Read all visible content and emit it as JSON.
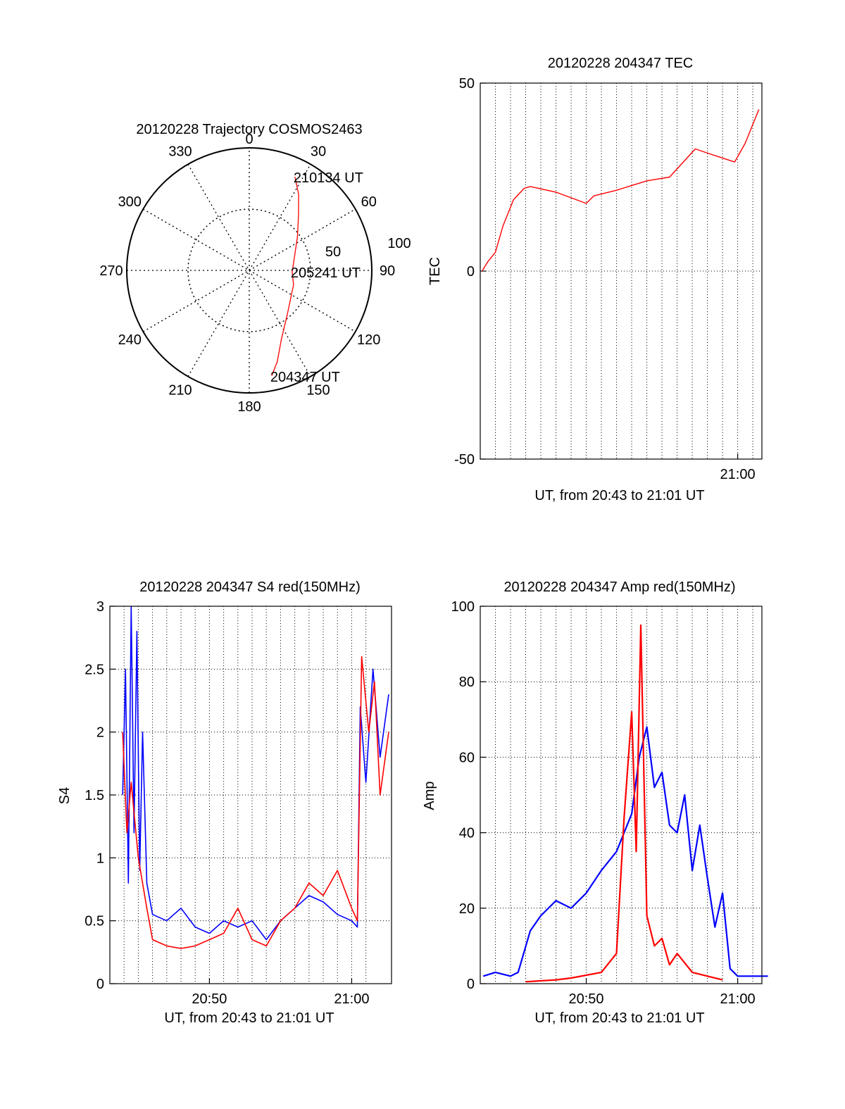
{
  "chart_data": [
    {
      "type": "polar",
      "title": "20120228 Trajectory COSMOS2463",
      "angle_labels": [
        "0",
        "30",
        "60",
        "90",
        "120",
        "150",
        "180",
        "210",
        "240",
        "270",
        "300",
        "330"
      ],
      "radius_labels": [
        "50",
        "100"
      ],
      "rlim": [
        0,
        100
      ],
      "grid": true,
      "series": [
        {
          "color": "#ff0000",
          "points": [
            {
              "az": 168,
              "r": 88
            },
            {
              "az": 163,
              "r": 78
            },
            {
              "az": 155,
              "r": 62
            },
            {
              "az": 140,
              "r": 48
            },
            {
              "az": 108,
              "r": 38
            },
            {
              "az": 92,
              "r": 35
            },
            {
              "az": 75,
              "r": 38
            },
            {
              "az": 55,
              "r": 48
            },
            {
              "az": 42,
              "r": 60
            },
            {
              "az": 33,
              "r": 74
            },
            {
              "az": 26,
              "r": 85
            }
          ]
        }
      ],
      "annotations": [
        {
          "text": "210134 UT",
          "az": 26,
          "r": 85
        },
        {
          "text": "205241 UT",
          "az": 92,
          "r": 35
        },
        {
          "text": "204347 UT",
          "az": 168,
          "r": 88
        }
      ]
    },
    {
      "type": "line",
      "title": "20120228 204347 TEC",
      "xlabel": "UT, from 20:43 to 21:01 UT",
      "ylabel": "TEC",
      "ylim": [
        -50,
        50
      ],
      "yticks": [
        "-50",
        "0",
        "50"
      ],
      "xticks": [
        "21:00"
      ],
      "grid": true,
      "series": [
        {
          "color": "#ff0000",
          "x": [
            0.12,
            0.5,
            1.0,
            1.5,
            2.2,
            2.9,
            3.3,
            5.0,
            7.0,
            7.5,
            9.0,
            11.0,
            12.5,
            14.2,
            15.3,
            16.8,
            17.5,
            18.4
          ],
          "values": [
            0,
            2.5,
            5,
            12,
            19,
            22,
            22.5,
            21,
            18,
            20,
            21.5,
            24,
            25,
            32.5,
            31,
            29,
            34,
            43
          ]
        }
      ]
    },
    {
      "type": "line",
      "title": "20120228 204347 S4 red(150MHz)",
      "xlabel": "UT, from 20:43 to 21:01 UT",
      "ylabel": "S4",
      "ylim": [
        0,
        3
      ],
      "yticks": [
        "0",
        "0.5",
        "1",
        "1.5",
        "2",
        "2.5",
        "3"
      ],
      "xticks": [
        "20:50",
        "21:00"
      ],
      "grid": true,
      "series": [
        {
          "color": "#0000ff",
          "x": [
            0.9,
            1.1,
            1.3,
            1.5,
            1.7,
            1.9,
            2.1,
            2.3,
            2.6,
            3.0,
            4.0,
            5.0,
            6.0,
            7.0,
            8.0,
            9.0,
            10.0,
            11.0,
            12.0,
            13.0,
            14.0,
            15.0,
            16.0,
            17.0,
            17.4,
            17.6,
            18.0,
            18.5,
            19.0,
            19.6
          ],
          "values": [
            1.5,
            2.5,
            0.8,
            3.0,
            1.2,
            2.8,
            0.9,
            2.0,
            0.8,
            0.55,
            0.5,
            0.6,
            0.45,
            0.4,
            0.5,
            0.45,
            0.5,
            0.35,
            0.5,
            0.6,
            0.7,
            0.65,
            0.55,
            0.5,
            0.45,
            2.2,
            1.6,
            2.5,
            1.8,
            2.3
          ]
        },
        {
          "color": "#ff0000",
          "x": [
            0.9,
            1.2,
            1.5,
            2.0,
            2.6,
            3.0,
            4.0,
            5.0,
            6.0,
            7.0,
            8.0,
            9.0,
            10.0,
            11.0,
            12.0,
            13.0,
            14.0,
            15.0,
            16.0,
            17.0,
            17.4,
            17.7,
            18.2,
            18.6,
            19.0,
            19.6
          ],
          "values": [
            2.0,
            1.2,
            1.6,
            1.0,
            0.6,
            0.35,
            0.3,
            0.28,
            0.3,
            0.35,
            0.4,
            0.6,
            0.35,
            0.3,
            0.5,
            0.6,
            0.8,
            0.7,
            0.9,
            0.6,
            0.5,
            2.6,
            2.0,
            2.4,
            1.5,
            2.0
          ]
        }
      ]
    },
    {
      "type": "line",
      "title": "20120228 204347 Amp red(150MHz)",
      "xlabel": "UT, from 20:43 to 21:01 UT",
      "ylabel": "Amp",
      "ylim": [
        0,
        100
      ],
      "yticks": [
        "0",
        "20",
        "40",
        "60",
        "80",
        "100"
      ],
      "xticks": [
        "20:50",
        "21:00"
      ],
      "grid": true,
      "series": [
        {
          "color": "#0000ff",
          "x": [
            0.2,
            1.0,
            2.0,
            2.5,
            3.3,
            4.0,
            5.0,
            6.0,
            7.0,
            8.0,
            9.0,
            10.0,
            10.5,
            11.0,
            11.5,
            12.0,
            12.5,
            13.0,
            13.5,
            14.0,
            14.5,
            15.0,
            15.5,
            16.0,
            16.5,
            17.0,
            18.0,
            19.0
          ],
          "values": [
            2,
            3,
            2,
            3,
            14,
            18,
            22,
            20,
            24,
            30,
            35,
            45,
            60,
            68,
            52,
            56,
            42,
            40,
            50,
            30,
            42,
            28,
            15,
            24,
            4,
            2,
            2,
            2
          ]
        },
        {
          "color": "#ff0000",
          "x": [
            3.0,
            5.0,
            6.0,
            8.0,
            9.0,
            9.5,
            10.0,
            10.3,
            10.6,
            11.0,
            11.5,
            12.0,
            12.5,
            13.0,
            14.0,
            15.0,
            16.0
          ],
          "values": [
            0.5,
            1,
            1.5,
            3,
            8,
            44,
            72,
            35,
            95,
            18,
            10,
            12,
            5,
            8,
            3,
            2,
            1
          ]
        }
      ]
    }
  ]
}
